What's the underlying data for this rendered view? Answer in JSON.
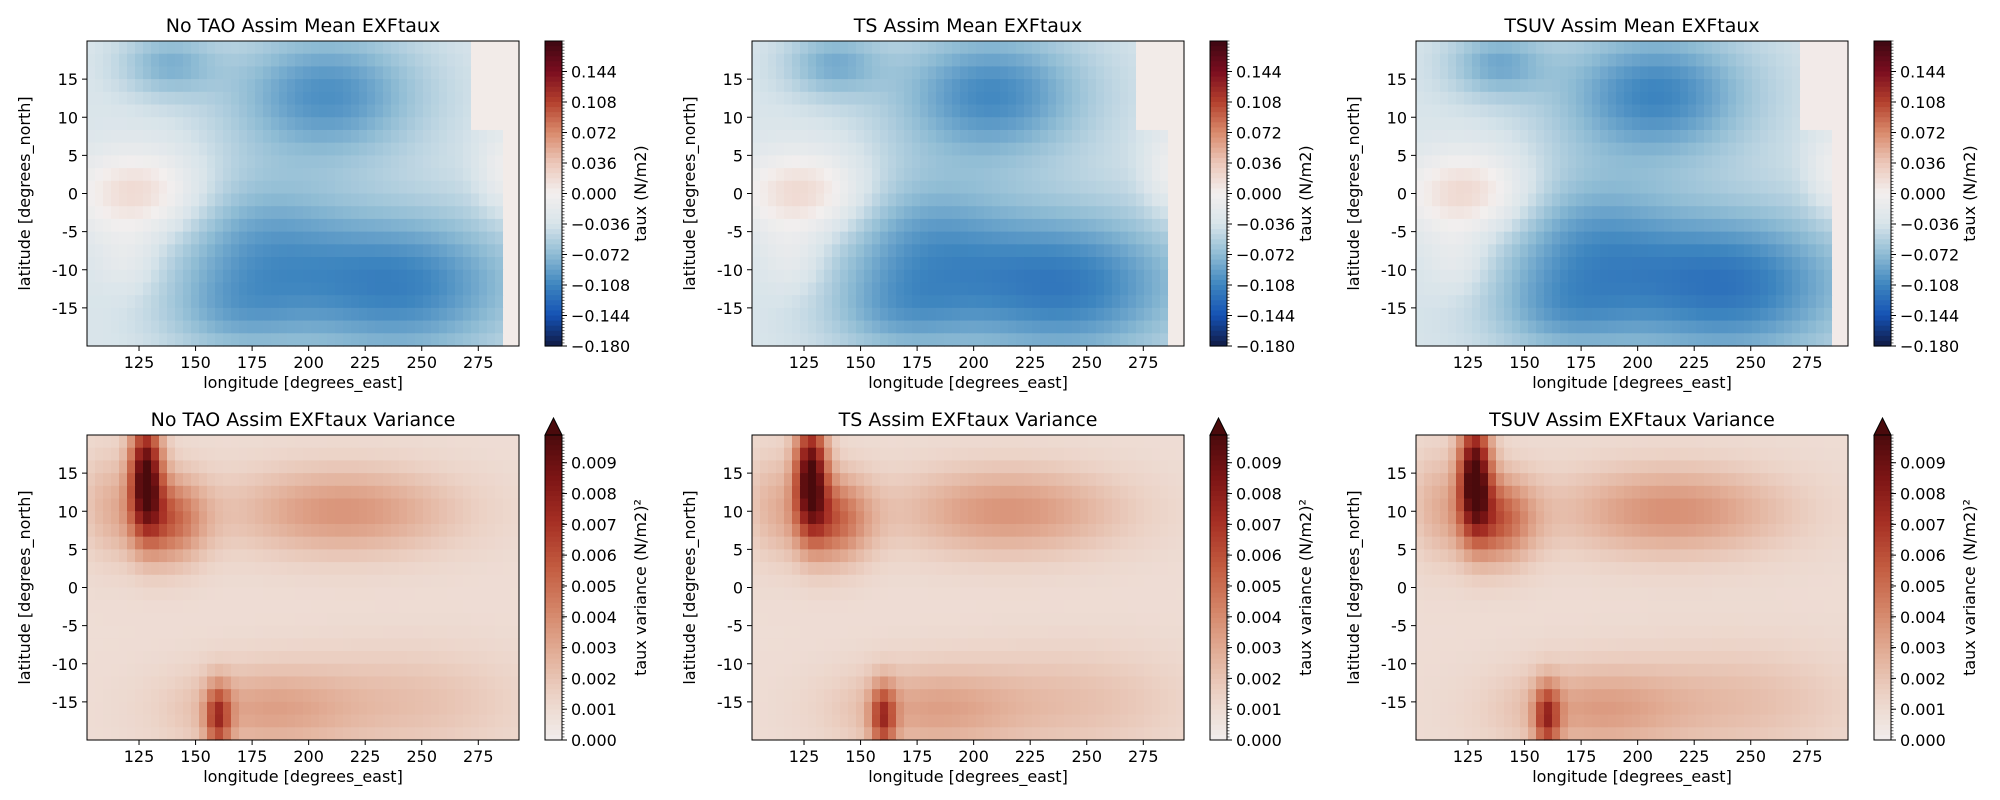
{
  "figure": {
    "panels": [
      {
        "title": "No TAO Assim Mean EXFtaux",
        "colorbar_label": "taux (N/m2)",
        "field": "mean",
        "case": "notao"
      },
      {
        "title": "TS Assim Mean EXFtaux",
        "colorbar_label": "taux (N/m2)",
        "field": "mean",
        "case": "ts"
      },
      {
        "title": "TSUV Assim Mean EXFtaux",
        "colorbar_label": "taux (N/m2)",
        "field": "mean",
        "case": "tsuv"
      },
      {
        "title": "No TAO Assim EXFtaux Variance",
        "colorbar_label": "taux variance (N/m2)²",
        "field": "variance",
        "case": "notao"
      },
      {
        "title": "TS Assim EXFtaux Variance",
        "colorbar_label": "taux variance (N/m2)²",
        "field": "variance",
        "case": "ts"
      },
      {
        "title": "TSUV Assim EXFtaux Variance",
        "colorbar_label": "taux variance (N/m2)²",
        "field": "variance",
        "case": "tsuv"
      }
    ]
  },
  "chart_data": [
    {
      "type": "heatmap",
      "title": "No TAO Assim Mean EXFtaux",
      "xlabel": "longitude [degrees_east]",
      "ylabel": "latitude [degrees_north]",
      "colorbar_label": "taux (N/m2)",
      "xlim": [
        102,
        293
      ],
      "ylim": [
        -20,
        20
      ],
      "xticks": [
        125,
        150,
        175,
        200,
        225,
        250,
        275
      ],
      "yticks": [
        -15,
        -10,
        -5,
        0,
        5,
        10,
        15
      ],
      "colorbar_ticks": [
        "0.144",
        "0.108",
        "0.072",
        "0.036",
        "0.000",
        "−0.036",
        "−0.072",
        "−0.108",
        "−0.144",
        "−0.180"
      ],
      "colorbar_range": [
        -0.18,
        0.18
      ],
      "colormap": [
        "#111a44",
        "#1552b4",
        "#3d85bf",
        "#8fbcd4",
        "#d8e4ea",
        "#f3efee",
        "#ecc7b9",
        "#d98a6c",
        "#b4402d",
        "#7a0d1f",
        "#3d0812"
      ]
    },
    {
      "type": "heatmap",
      "title": "TS Assim Mean EXFtaux",
      "xlabel": "longitude [degrees_east]",
      "ylabel": "latitude [degrees_north]",
      "colorbar_label": "taux (N/m2)",
      "xlim": [
        102,
        293
      ],
      "ylim": [
        -20,
        20
      ],
      "xticks": [
        125,
        150,
        175,
        200,
        225,
        250,
        275
      ],
      "yticks": [
        -15,
        -10,
        -5,
        0,
        5,
        10,
        15
      ],
      "colorbar_ticks": [
        "0.144",
        "0.108",
        "0.072",
        "0.036",
        "0.000",
        "−0.036",
        "−0.072",
        "−0.108",
        "−0.144",
        "−0.180"
      ],
      "colorbar_range": [
        -0.18,
        0.18
      ]
    },
    {
      "type": "heatmap",
      "title": "TSUV Assim Mean EXFtaux",
      "xlabel": "longitude [degrees_east]",
      "ylabel": "latitude [degrees_north]",
      "colorbar_label": "taux (N/m2)",
      "xlim": [
        102,
        293
      ],
      "ylim": [
        -20,
        20
      ],
      "xticks": [
        125,
        150,
        175,
        200,
        225,
        250,
        275
      ],
      "yticks": [
        -15,
        -10,
        -5,
        0,
        5,
        10,
        15
      ],
      "colorbar_ticks": [
        "0.144",
        "0.108",
        "0.072",
        "0.036",
        "0.000",
        "−0.036",
        "−0.072",
        "−0.108",
        "−0.144",
        "−0.180"
      ],
      "colorbar_range": [
        -0.18,
        0.18
      ]
    },
    {
      "type": "heatmap",
      "title": "No TAO Assim EXFtaux Variance",
      "xlabel": "longitude [degrees_east]",
      "ylabel": "latitude [degrees_north]",
      "colorbar_label": "taux variance (N/m2)²",
      "xlim": [
        102,
        293
      ],
      "ylim": [
        -20,
        20
      ],
      "xticks": [
        125,
        150,
        175,
        200,
        225,
        250,
        275
      ],
      "yticks": [
        -15,
        -10,
        -5,
        0,
        5,
        10,
        15
      ],
      "colorbar_ticks": [
        "0.009",
        "0.008",
        "0.007",
        "0.006",
        "0.005",
        "0.004",
        "0.003",
        "0.002",
        "0.001",
        "0.000"
      ],
      "colorbar_range": [
        0,
        0.0099
      ],
      "colorbar_extend": "max",
      "colormap": [
        "#f1eeed",
        "#ecd3c7",
        "#e2ae97",
        "#d48467",
        "#c25a3f",
        "#a62f24",
        "#7d1515",
        "#4a0a0c"
      ]
    },
    {
      "type": "heatmap",
      "title": "TS Assim EXFtaux Variance",
      "xlabel": "longitude [degrees_east]",
      "ylabel": "latitude [degrees_north]",
      "colorbar_label": "taux variance (N/m2)²",
      "xlim": [
        102,
        293
      ],
      "ylim": [
        -20,
        20
      ],
      "xticks": [
        125,
        150,
        175,
        200,
        225,
        250,
        275
      ],
      "yticks": [
        -15,
        -10,
        -5,
        0,
        5,
        10,
        15
      ],
      "colorbar_ticks": [
        "0.009",
        "0.008",
        "0.007",
        "0.006",
        "0.005",
        "0.004",
        "0.003",
        "0.002",
        "0.001",
        "0.000"
      ],
      "colorbar_range": [
        0,
        0.0099
      ],
      "colorbar_extend": "max"
    },
    {
      "type": "heatmap",
      "title": "TSUV Assim EXFtaux Variance",
      "xlabel": "longitude [degrees_east]",
      "ylabel": "latitude [degrees_north]",
      "colorbar_label": "taux variance (N/m2)²",
      "xlim": [
        102,
        293
      ],
      "ylim": [
        -20,
        20
      ],
      "xticks": [
        125,
        150,
        175,
        200,
        225,
        250,
        275
      ],
      "yticks": [
        -15,
        -10,
        -5,
        0,
        5,
        10,
        15
      ],
      "colorbar_ticks": [
        "0.009",
        "0.008",
        "0.007",
        "0.006",
        "0.005",
        "0.004",
        "0.003",
        "0.002",
        "0.001",
        "0.000"
      ],
      "colorbar_range": [
        0,
        0.0099
      ],
      "colorbar_extend": "max"
    }
  ]
}
